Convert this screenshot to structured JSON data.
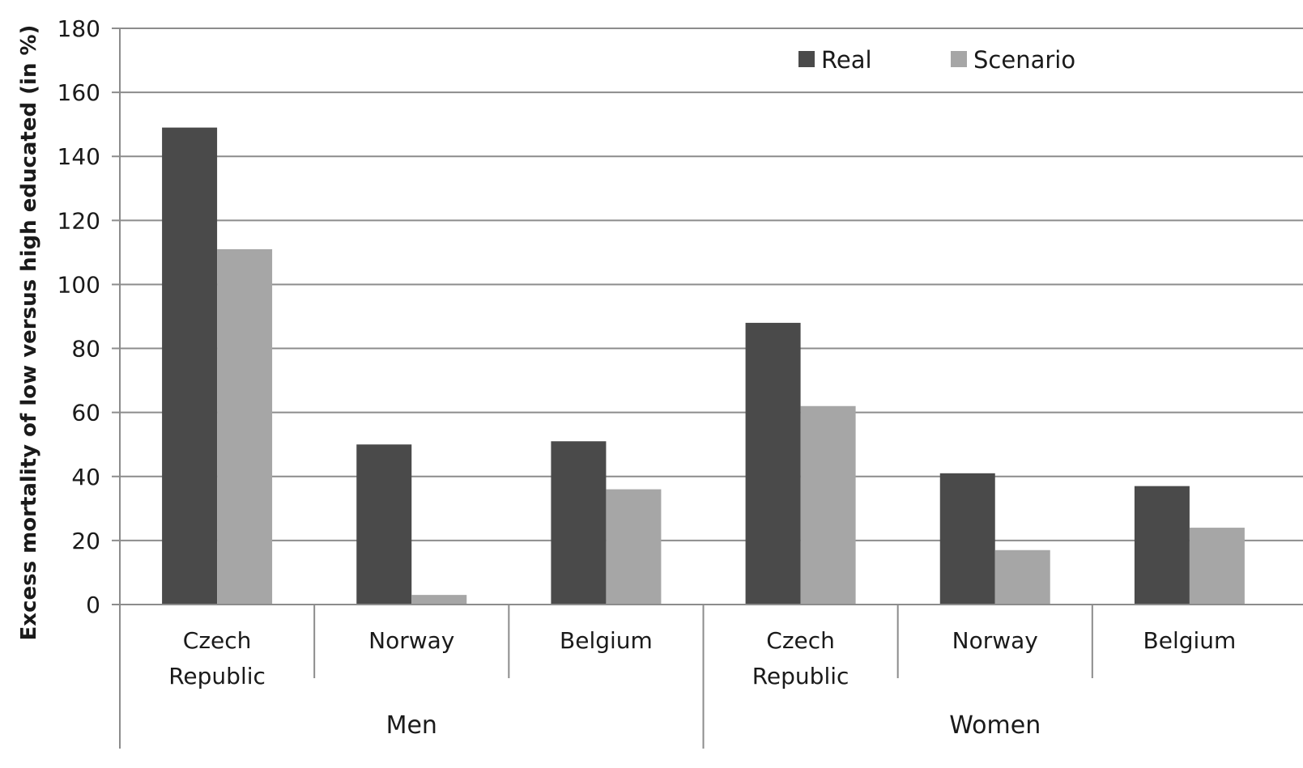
{
  "chart_data": {
    "type": "bar",
    "ylabel": "Excess mortality of low versus high educated (in %)",
    "ylim": [
      0,
      180
    ],
    "y_ticks": [
      0,
      20,
      40,
      60,
      80,
      100,
      120,
      140,
      160,
      180
    ],
    "grid": true,
    "legend_position": "top-right",
    "groups": [
      {
        "label": "Men",
        "categories": [
          "Czech Republic",
          "Norway",
          "Belgium"
        ]
      },
      {
        "label": "Women",
        "categories": [
          "Czech Republic",
          "Norway",
          "Belgium"
        ]
      }
    ],
    "categories": [
      [
        "Czech",
        "Republic"
      ],
      [
        "Norway"
      ],
      [
        "Belgium"
      ],
      [
        "Czech",
        "Republic"
      ],
      [
        "Norway"
      ],
      [
        "Belgium"
      ]
    ],
    "series": [
      {
        "name": "Real",
        "color": "#4a4a4a",
        "values": [
          149,
          50,
          51,
          88,
          41,
          37
        ]
      },
      {
        "name": "Scenario",
        "color": "#a6a6a6",
        "values": [
          111,
          3,
          36,
          62,
          17,
          24
        ]
      }
    ]
  }
}
